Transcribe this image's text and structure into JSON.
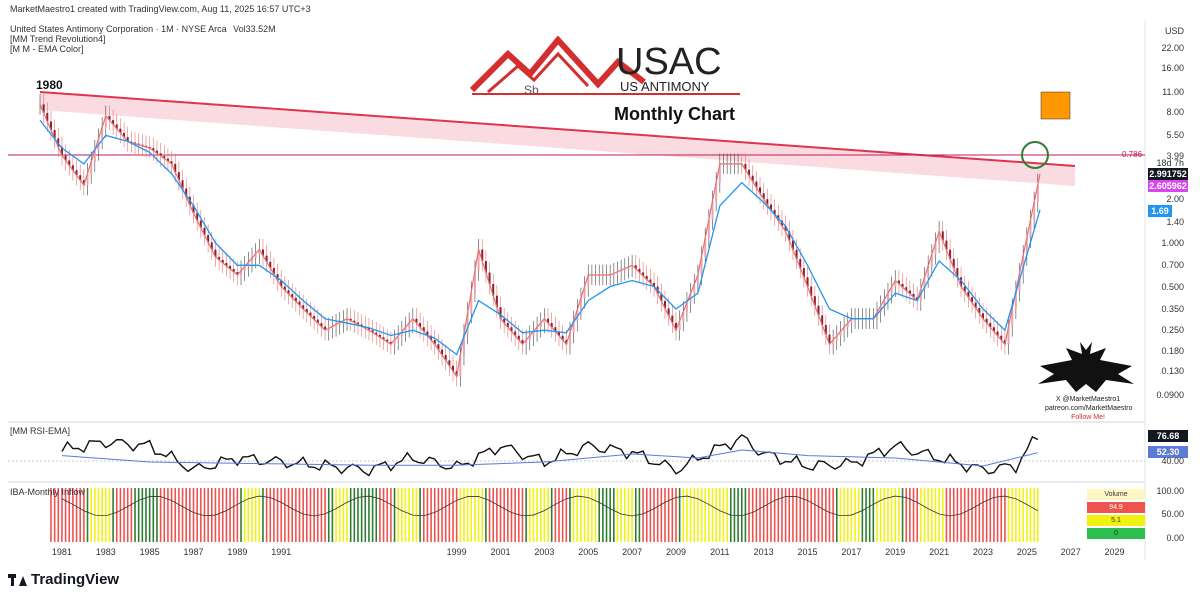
{
  "header": {
    "attribution": "MarketMaestro1 created with TradingView.com, Aug 11, 2025 16:57 UTC+3",
    "symbol_line": "United States Antimony Corporation · 1M · NYSE Arca",
    "volume_label": "Vol",
    "volume_value": "33.52M",
    "indicator1": "[MM Trend Revolution4]",
    "indicator2": "[M M - EMA Color]"
  },
  "logo": {
    "ticker": "USAC",
    "company": "US ANTIMONY",
    "element": "Sb"
  },
  "chart_title": "Monthly Chart",
  "annotations": {
    "year_label": "1980",
    "fib_label": "0.786"
  },
  "price_axis": {
    "currency": "USD",
    "ticks": [
      "22.00",
      "16.00",
      "11.00",
      "8.00",
      "5.50",
      "3.99",
      "2.00",
      "1.40",
      "1.000",
      "0.700",
      "0.500",
      "0.350",
      "0.250",
      "0.180",
      "0.130",
      "0.0900"
    ],
    "countdown": "18d 7h",
    "last_price": "2.991752",
    "ema_value": "2.605962",
    "ema2_value": "1.69"
  },
  "rsi_panel": {
    "title": "[MM RSI-EMA]",
    "value": "76.68",
    "ema_value": "52.30",
    "tick": "40.00"
  },
  "iba_panel": {
    "title": "IBA-Monthly Inflow",
    "ticks": [
      "100.00",
      "50.00",
      "0.00"
    ]
  },
  "volume_legend": {
    "title": "Volume",
    "rows": [
      "94.9",
      "5.1",
      "0"
    ]
  },
  "watermark": {
    "line1": "X @MarketMaestro1",
    "line2": "patreon.com/MarketMaestro",
    "line3": "Follow Me!"
  },
  "time_axis": [
    "1981",
    "1983",
    "1985",
    "1987",
    "1989",
    "1991",
    "1999",
    "2001",
    "2003",
    "2005",
    "2007",
    "2009",
    "2011",
    "2013",
    "2015",
    "2017",
    "2019",
    "2021",
    "2023",
    "2025",
    "2027",
    "2029"
  ],
  "branding": "TradingView",
  "colors": {
    "trendline": "#e0334d",
    "channel_fill": "#f7c3cd",
    "ema": "#2196f3",
    "price_tag": "#131722",
    "ema_tag": "#d946ef",
    "ema2_tag": "#2196f3",
    "orange_box": "#ff9800",
    "green_circle": "#2e7d32",
    "iba_green": "#2e7d32",
    "iba_yellow": "#f2f212",
    "iba_red": "#ef5350"
  },
  "chart_data": {
    "type": "line",
    "title": "Monthly Chart",
    "scale": "log",
    "ylim": [
      0.08,
      25
    ],
    "x": [
      1980,
      1981,
      1982,
      1983,
      1984,
      1985,
      1986,
      1987,
      1988,
      1989,
      1990,
      1991,
      1992,
      1993,
      1994,
      1995,
      1996,
      1997,
      1998,
      1999,
      2000,
      2001,
      2002,
      2003,
      2004,
      2005,
      2006,
      2007,
      2008,
      2009,
      2010,
      2011,
      2012,
      2013,
      2014,
      2015,
      2016,
      2017,
      2018,
      2019,
      2020,
      2021,
      2022,
      2023,
      2024,
      2025.6
    ],
    "series": [
      {
        "name": "",
        "values": [
          9.0,
          4.0,
          2.5,
          7.5,
          5.0,
          4.5,
          3.5,
          1.6,
          0.8,
          0.6,
          0.9,
          0.5,
          0.35,
          0.25,
          0.3,
          0.25,
          0.2,
          0.3,
          0.2,
          0.12,
          0.9,
          0.3,
          0.2,
          0.3,
          0.2,
          0.6,
          0.6,
          0.7,
          0.5,
          0.25,
          0.6,
          3.5,
          3.5,
          2.0,
          1.2,
          0.5,
          0.2,
          0.3,
          0.3,
          0.55,
          0.4,
          1.2,
          0.5,
          0.3,
          0.2,
          2.99
        ]
      },
      {
        "name": "",
        "values": [
          7.0,
          4.5,
          3.5,
          5.5,
          5.0,
          4.2,
          3.0,
          1.8,
          1.0,
          0.7,
          0.7,
          0.55,
          0.4,
          0.3,
          0.28,
          0.26,
          0.23,
          0.25,
          0.22,
          0.17,
          0.4,
          0.32,
          0.24,
          0.25,
          0.24,
          0.4,
          0.5,
          0.55,
          0.5,
          0.35,
          0.45,
          1.8,
          2.6,
          1.9,
          1.3,
          0.7,
          0.35,
          0.3,
          0.3,
          0.45,
          0.4,
          0.75,
          0.55,
          0.35,
          0.25,
          1.69
        ]
      }
    ],
    "rsi": {
      "x": [
        1981,
        1983,
        1985,
        1987,
        1989,
        1991,
        1993,
        1995,
        1997,
        1999,
        2001,
        2003,
        2005,
        2007,
        2009,
        2011,
        2012,
        2013,
        2015,
        2017,
        2019,
        2021,
        2023,
        2024.5,
        2025.6
      ],
      "values": [
        55,
        65,
        60,
        30,
        45,
        40,
        35,
        30,
        45,
        33,
        60,
        40,
        60,
        52,
        30,
        58,
        70,
        50,
        35,
        38,
        60,
        45,
        30,
        35,
        76.68
      ]
    },
    "rsi_ema": {
      "x": [
        1981,
        1985,
        1990,
        1995,
        1999,
        2003,
        2007,
        2010,
        2012,
        2015,
        2019,
        2023,
        2025.6
      ],
      "values": [
        48,
        40,
        38,
        36,
        36,
        40,
        50,
        45,
        55,
        48,
        45,
        35,
        52.3
      ]
    }
  }
}
